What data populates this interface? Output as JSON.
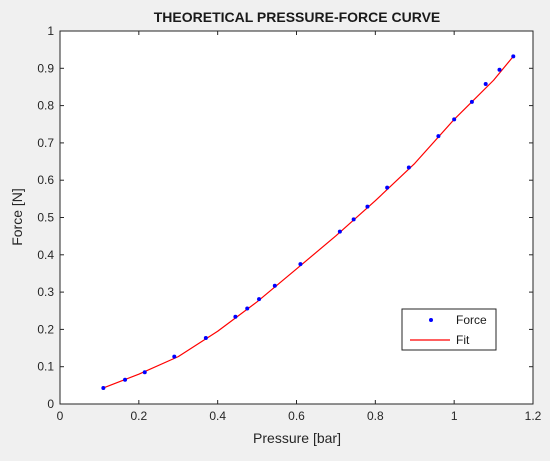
{
  "chart_data": {
    "type": "scatter",
    "title": "THEORETICAL PRESSURE-FORCE CURVE",
    "xlabel": "Pressure [bar]",
    "ylabel": "Force [N]",
    "xlim": [
      0,
      1.2
    ],
    "ylim": [
      0,
      1
    ],
    "xticks": [
      "0",
      "0.2",
      "0.4",
      "0.6",
      "0.8",
      "1",
      "1.2"
    ],
    "yticks": [
      "0",
      "0.1",
      "0.2",
      "0.3",
      "0.4",
      "0.5",
      "0.6",
      "0.7",
      "0.8",
      "0.9",
      "1"
    ],
    "grid": false,
    "legend_position": "bottom-right",
    "series": [
      {
        "name": "Force",
        "style": "markers",
        "color": "#0000ff",
        "x": [
          0.11,
          0.165,
          0.215,
          0.29,
          0.37,
          0.445,
          0.475,
          0.505,
          0.545,
          0.61,
          0.71,
          0.745,
          0.78,
          0.83,
          0.885,
          0.96,
          1.0,
          1.045,
          1.08,
          1.115,
          1.15
        ],
        "y": [
          0.043,
          0.065,
          0.085,
          0.127,
          0.177,
          0.234,
          0.256,
          0.281,
          0.317,
          0.375,
          0.462,
          0.495,
          0.529,
          0.58,
          0.634,
          0.718,
          0.763,
          0.81,
          0.858,
          0.896,
          0.932
        ]
      },
      {
        "name": "Fit",
        "style": "line",
        "color": "#ff0000",
        "x": [
          0.11,
          0.2,
          0.3,
          0.4,
          0.5,
          0.6,
          0.7,
          0.8,
          0.9,
          1.0,
          1.1,
          1.15
        ],
        "y": [
          0.043,
          0.08,
          0.127,
          0.195,
          0.274,
          0.362,
          0.451,
          0.545,
          0.645,
          0.763,
          0.868,
          0.932
        ]
      }
    ]
  }
}
